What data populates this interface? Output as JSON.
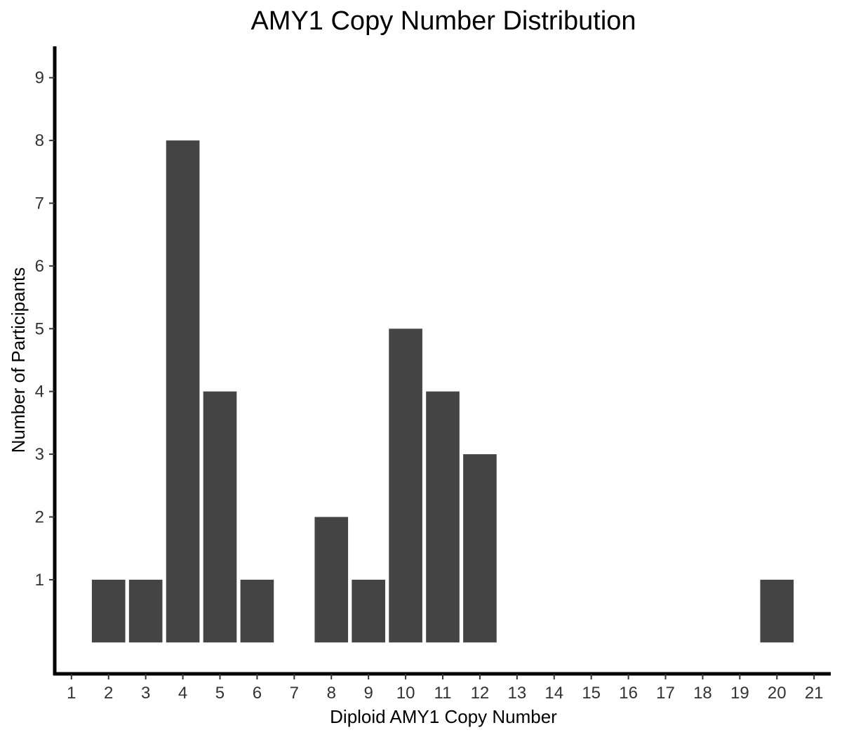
{
  "chart_data": {
    "type": "bar",
    "title": "AMY1 Copy Number Distribution",
    "xlabel": "Diploid AMY1 Copy Number",
    "ylabel": "Number of Participants",
    "x_ticks": [
      "1",
      "2",
      "3",
      "4",
      "5",
      "6",
      "7",
      "8",
      "9",
      "10",
      "11",
      "12",
      "13",
      "14",
      "15",
      "16",
      "17",
      "18",
      "19",
      "20",
      "21"
    ],
    "y_ticks": [
      "1",
      "2",
      "3",
      "4",
      "5",
      "6",
      "7",
      "8",
      "9"
    ],
    "categories": [
      2,
      3,
      4,
      5,
      6,
      8,
      9,
      10,
      11,
      12,
      20
    ],
    "values": [
      1,
      1,
      8,
      4,
      1,
      2,
      1,
      5,
      4,
      3,
      1
    ],
    "xlim": [
      0.55,
      21.45
    ],
    "ylim": [
      -0.5,
      9.5
    ],
    "bar_color": "#444444",
    "grid": false,
    "legend": "none"
  }
}
